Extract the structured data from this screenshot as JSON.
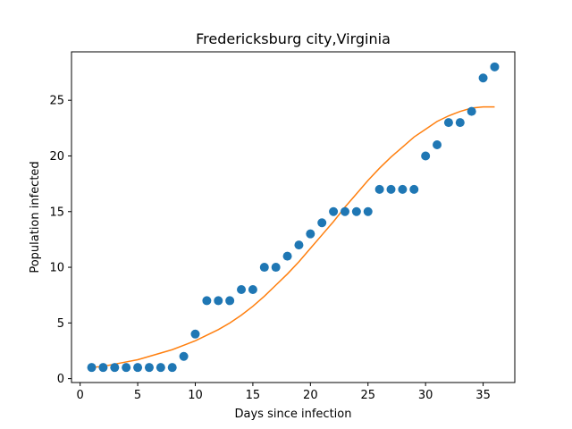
{
  "chart_data": {
    "type": "scatter",
    "title": "Fredericksburg city,Virginia",
    "xlabel": "Days since infection",
    "ylabel": "Population infected",
    "xlim": [
      -0.75,
      37.75
    ],
    "ylim": [
      -0.35,
      29.35
    ],
    "xticks": [
      0,
      5,
      10,
      15,
      20,
      25,
      30,
      35
    ],
    "yticks": [
      0,
      5,
      10,
      15,
      20,
      25
    ],
    "grid": false,
    "series": [
      {
        "kind": "scatter",
        "color": "#1f77b4",
        "x": [
          1,
          2,
          3,
          4,
          5,
          6,
          7,
          8,
          9,
          10,
          11,
          12,
          13,
          14,
          15,
          16,
          17,
          18,
          19,
          20,
          21,
          22,
          23,
          24,
          25,
          26,
          27,
          28,
          29,
          30,
          31,
          32,
          33,
          34,
          35,
          36
        ],
        "y": [
          1,
          1,
          1,
          1,
          1,
          1,
          1,
          1,
          2,
          4,
          7,
          7,
          7,
          8,
          8,
          10,
          10,
          11,
          12,
          13,
          14,
          15,
          15,
          15,
          15,
          17,
          17,
          17,
          17,
          20,
          21,
          23,
          23,
          24,
          27,
          28
        ]
      },
      {
        "kind": "line",
        "color": "#ff7f0e",
        "x": [
          1,
          2,
          3,
          4,
          5,
          6,
          7,
          8,
          9,
          10,
          11,
          12,
          13,
          14,
          15,
          16,
          17,
          18,
          19,
          20,
          21,
          22,
          23,
          24,
          25,
          26,
          27,
          28,
          29,
          30,
          31,
          32,
          33,
          34,
          35,
          36
        ],
        "y": [
          1.0,
          1.1,
          1.3,
          1.5,
          1.7,
          2.0,
          2.3,
          2.6,
          3.0,
          3.4,
          3.9,
          4.4,
          5.0,
          5.7,
          6.5,
          7.4,
          8.4,
          9.4,
          10.5,
          11.7,
          12.9,
          14.1,
          15.4,
          16.6,
          17.8,
          18.9,
          19.9,
          20.8,
          21.7,
          22.4,
          23.1,
          23.6,
          24.0,
          24.3,
          24.4,
          24.4
        ]
      }
    ]
  }
}
